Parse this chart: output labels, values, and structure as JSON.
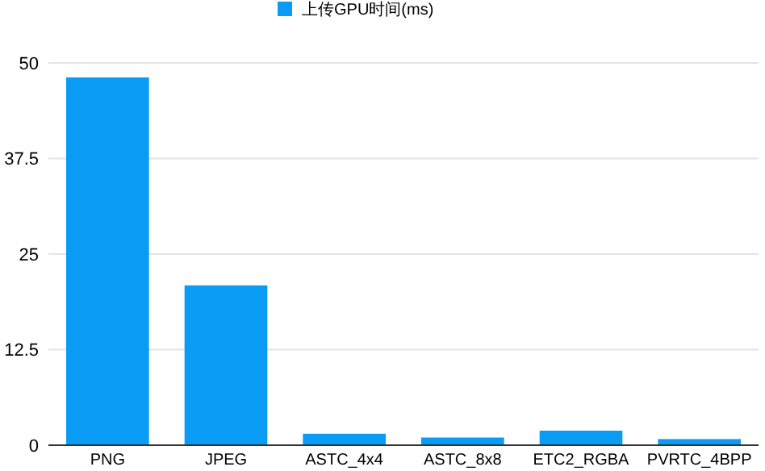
{
  "chart_data": {
    "type": "bar",
    "categories": [
      "PNG",
      "JPEG",
      "ASTC_4x4",
      "ASTC_8x8",
      "ETC2_RGBA",
      "PVRTC_4BPP"
    ],
    "series": [
      {
        "name": "上传GPU时间(ms)",
        "color": "#0a9cf5",
        "values": [
          48.1,
          20.9,
          1.5,
          1.0,
          1.9,
          0.8
        ]
      }
    ],
    "ylim": [
      0,
      50
    ],
    "yticks": [
      0,
      12.5,
      25,
      37.5,
      50
    ],
    "grid": "y",
    "legend": "top"
  }
}
